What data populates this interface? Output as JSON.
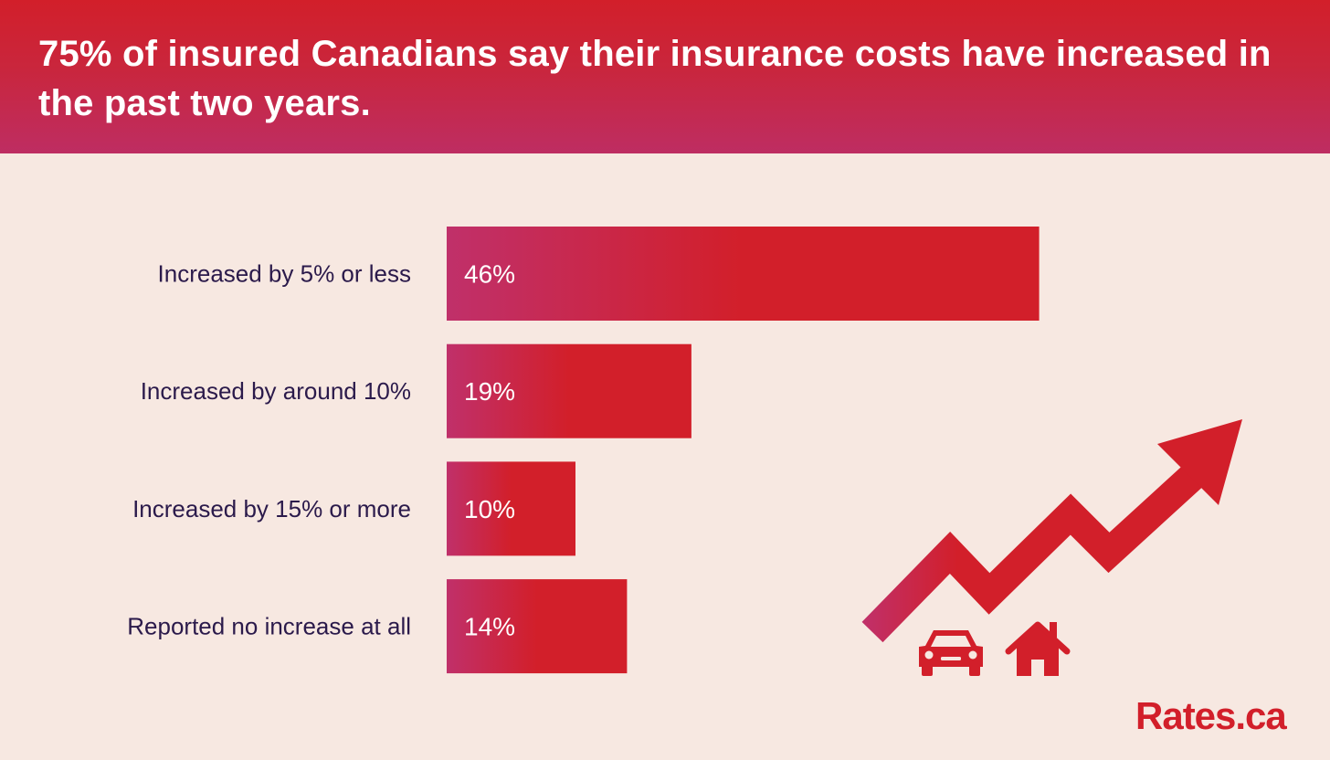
{
  "header": {
    "title": "75% of insured Canadians say their insurance costs have increased in the past two years."
  },
  "chart_data": {
    "type": "bar",
    "orientation": "horizontal",
    "title": "75% of insured Canadians say their insurance costs have increased in the past two years.",
    "categories": [
      "Increased by 5% or less",
      "Increased by around 10%",
      "Increased by 15% or more",
      "Reported no increase at all"
    ],
    "values": [
      46,
      19,
      10,
      14
    ],
    "value_labels": [
      "46%",
      "19%",
      "10%",
      "14%"
    ],
    "grid": false,
    "bar_color": "#d21f2a",
    "bar_gradient_start": "#c0306a"
  },
  "illustration": {
    "arrow_icon": "trending-up-arrow-icon",
    "car_icon": "car-icon",
    "house_icon": "house-icon",
    "color": "#d21f2a"
  },
  "brand": {
    "logo_text": "Rates.ca",
    "color": "#d21f2a"
  }
}
